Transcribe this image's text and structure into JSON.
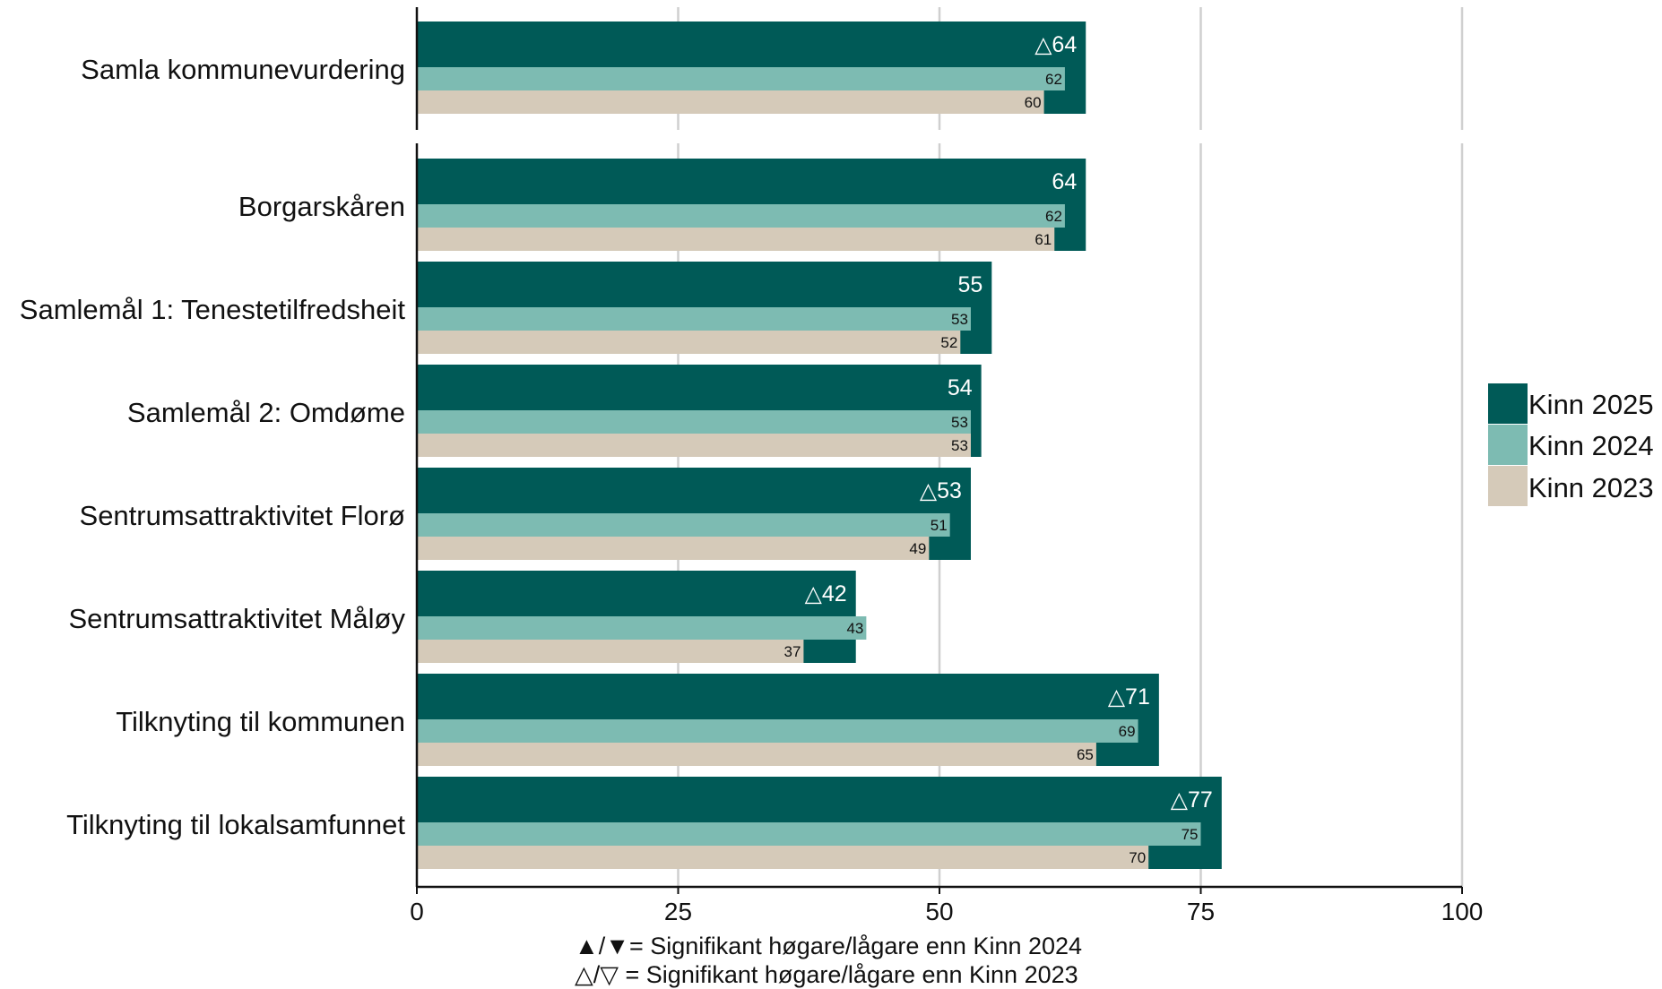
{
  "colors": {
    "kinn_2025": "#005a57",
    "kinn_2024": "#7dbbb2",
    "kinn_2023": "#d5cab9",
    "grid": "#cfcfcf",
    "axis": "#111111"
  },
  "chart_data": {
    "type": "bar",
    "orientation": "horizontal",
    "title": "",
    "xlabel": "",
    "ylabel": "",
    "xlim": [
      0,
      100
    ],
    "x_ticks": [
      "0",
      "25",
      "50",
      "75",
      "100"
    ],
    "grid": true,
    "legend_position": "right",
    "categories": [
      "Samla kommunevurdering",
      "Borgarskåren",
      "Samlemål 1: Tenestetilfredsheit",
      "Samlemål 2: Omdøme",
      "Sentrumsattraktivitet Florø",
      "Sentrumsattraktivitet Måløy",
      "Tilknyting til kommunen",
      "Tilknyting til lokalsamfunnet"
    ],
    "series": [
      {
        "name": "Kinn 2025",
        "values": [
          64,
          64,
          55,
          54,
          53,
          42,
          71,
          77
        ],
        "labels": [
          "△64",
          "64",
          "55",
          "54",
          "△53",
          "△42",
          "△71",
          "△77"
        ]
      },
      {
        "name": "Kinn 2024",
        "values": [
          62,
          62,
          53,
          53,
          51,
          43,
          69,
          75
        ],
        "labels": [
          "62",
          "62",
          "53",
          "53",
          "51",
          "43",
          "69",
          "75"
        ]
      },
      {
        "name": "Kinn 2023",
        "values": [
          60,
          61,
          52,
          53,
          49,
          37,
          65,
          70
        ],
        "labels": [
          "60",
          "61",
          "52",
          "53",
          "49",
          "37",
          "65",
          "70"
        ]
      }
    ],
    "notes": [
      "▲/▼= Signifikant høgare/lågare enn Kinn 2024",
      "△/▽ = Signifikant høgare/lågare enn Kinn 2023"
    ]
  }
}
